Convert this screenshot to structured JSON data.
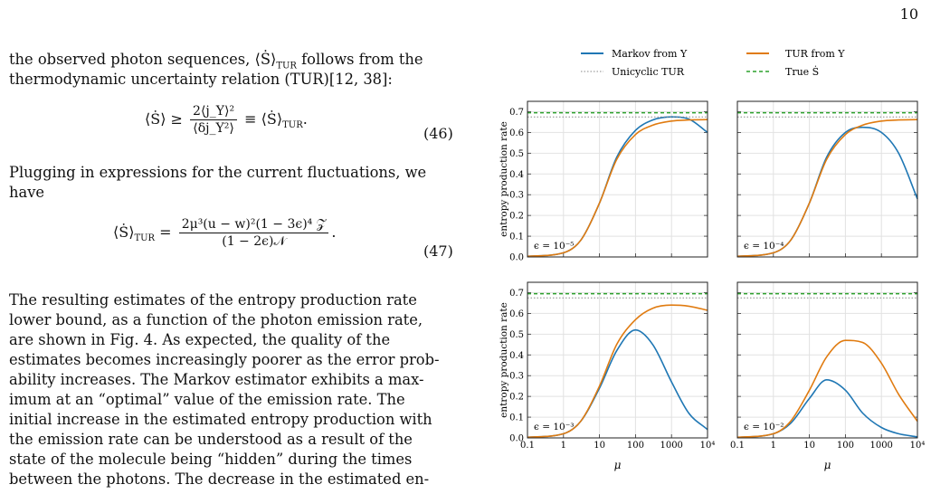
{
  "page_number": "10",
  "text": {
    "line1": "the observed photon sequences, ⟨Ṡ⟩",
    "line1_sub": "TUR",
    "line1_tail": " follows from the",
    "line2": "thermodynamic uncertainty relation (TUR)[12, 38]:",
    "eq46_left": "⟨Ṡ⟩ ≥",
    "eq46_num": "2⟨j_Y⟩²",
    "eq46_den": "⟨δj_Y²⟩",
    "eq46_right": "≡ ⟨Ṡ⟩",
    "eq46_right_sub": "TUR",
    "eq46_number": "(46)",
    "line3": "Plugging in expressions for the current fluctuations, we",
    "line4": "have",
    "eq47_left": "⟨Ṡ⟩",
    "eq47_left_sub": "TUR",
    "eq47_eq": " =",
    "eq47_num": "2μ³(u − w)²(1 − 3ϵ)⁴ 𝒵",
    "eq47_den": "(1 − 2ϵ)𝒩",
    "eq47_number": "(47)",
    "para": [
      "   The resulting estimates of the entropy production rate",
      "lower bound, as a function of the photon emission rate,",
      "are shown in Fig. 4.  As expected, the quality of the",
      "estimates becomes increasingly poorer as the error prob-",
      "ability increases. The Markov estimator exhibits a max-",
      "imum at an “optimal” value of the emission rate.  The",
      "initial increase in the estimated entropy production with",
      "the emission rate can be understood as a result of the",
      "state of the molecule being “hidden” during the times",
      "between the photons. The decrease in the estimated en-"
    ]
  },
  "legend": [
    "Markov from Y",
    "TUR from Y",
    "Unicyclic TUR",
    "True Ṡ"
  ],
  "colors": {
    "markov": "#1f77b4",
    "tur": "#e07b10",
    "unicyclic": "#888888",
    "true": "#2ca02c"
  },
  "chart_data": [
    {
      "type": "line",
      "panel": "top-left",
      "annotation": "ϵ = 10⁻⁵",
      "ylabel": "entropy production rate",
      "xlabel": "",
      "x_scale": "log",
      "xlim": [
        0.1,
        10000
      ],
      "ylim": [
        0,
        0.75
      ],
      "x_ticks": [
        "0.1",
        "1",
        "10",
        "100",
        "1000",
        "10⁴"
      ],
      "y_ticks": [
        "0.0",
        "0.1",
        "0.2",
        "0.3",
        "0.4",
        "0.5",
        "0.6",
        "0.7"
      ],
      "grid": true,
      "show_x_ticks": false,
      "show_y_ticks": true,
      "x": [
        0.1,
        1,
        3,
        10,
        30,
        100,
        300,
        1000,
        3000,
        10000
      ],
      "series": [
        {
          "name": "Markov from Y",
          "values": [
            0.003,
            0.02,
            0.08,
            0.26,
            0.48,
            0.61,
            0.66,
            0.675,
            0.665,
            0.6
          ]
        },
        {
          "name": "TUR from Y",
          "values": [
            0.003,
            0.02,
            0.08,
            0.26,
            0.47,
            0.59,
            0.635,
            0.655,
            0.66,
            0.662
          ]
        },
        {
          "name": "Unicyclic TUR",
          "values": [
            0.675,
            0.675,
            0.675,
            0.675,
            0.675,
            0.675,
            0.675,
            0.675,
            0.675,
            0.675
          ]
        },
        {
          "name": "True Ṡ",
          "values": [
            0.695,
            0.695,
            0.695,
            0.695,
            0.695,
            0.695,
            0.695,
            0.695,
            0.695,
            0.695
          ]
        }
      ]
    },
    {
      "type": "line",
      "panel": "top-right",
      "annotation": "ϵ = 10⁻⁴",
      "ylabel": "",
      "xlabel": "",
      "x_scale": "log",
      "xlim": [
        0.1,
        10000
      ],
      "ylim": [
        0,
        0.75
      ],
      "x_ticks": [
        "0.1",
        "1",
        "10",
        "100",
        "1000",
        "10⁴"
      ],
      "y_ticks": [
        "0.0",
        "0.1",
        "0.2",
        "0.3",
        "0.4",
        "0.5",
        "0.6",
        "0.7"
      ],
      "grid": true,
      "show_x_ticks": false,
      "show_y_ticks": false,
      "x": [
        0.1,
        1,
        3,
        10,
        30,
        100,
        300,
        1000,
        3000,
        10000
      ],
      "series": [
        {
          "name": "Markov from Y",
          "values": [
            0.003,
            0.02,
            0.08,
            0.26,
            0.48,
            0.6,
            0.625,
            0.6,
            0.5,
            0.28
          ]
        },
        {
          "name": "TUR from Y",
          "values": [
            0.003,
            0.02,
            0.08,
            0.26,
            0.47,
            0.59,
            0.635,
            0.655,
            0.66,
            0.662
          ]
        },
        {
          "name": "Unicyclic TUR",
          "values": [
            0.675,
            0.675,
            0.675,
            0.675,
            0.675,
            0.675,
            0.675,
            0.675,
            0.675,
            0.675
          ]
        },
        {
          "name": "True Ṡ",
          "values": [
            0.695,
            0.695,
            0.695,
            0.695,
            0.695,
            0.695,
            0.695,
            0.695,
            0.695,
            0.695
          ]
        }
      ]
    },
    {
      "type": "line",
      "panel": "bottom-left",
      "annotation": "ϵ = 10⁻³",
      "ylabel": "entropy production rate",
      "xlabel": "μ",
      "x_scale": "log",
      "xlim": [
        0.1,
        10000
      ],
      "ylim": [
        0,
        0.75
      ],
      "x_ticks": [
        "0.1",
        "1",
        "10",
        "100",
        "1000",
        "10⁴"
      ],
      "y_ticks": [
        "0.0",
        "0.1",
        "0.2",
        "0.3",
        "0.4",
        "0.5",
        "0.6",
        "0.7"
      ],
      "grid": true,
      "show_x_ticks": true,
      "show_y_ticks": true,
      "x": [
        0.1,
        1,
        3,
        10,
        30,
        100,
        300,
        1000,
        3000,
        10000
      ],
      "series": [
        {
          "name": "Markov from Y",
          "values": [
            0.003,
            0.02,
            0.08,
            0.24,
            0.42,
            0.52,
            0.45,
            0.27,
            0.12,
            0.04
          ]
        },
        {
          "name": "TUR from Y",
          "values": [
            0.003,
            0.02,
            0.08,
            0.25,
            0.45,
            0.57,
            0.625,
            0.64,
            0.635,
            0.615
          ]
        },
        {
          "name": "Unicyclic TUR",
          "values": [
            0.675,
            0.675,
            0.675,
            0.675,
            0.675,
            0.675,
            0.675,
            0.675,
            0.675,
            0.675
          ]
        },
        {
          "name": "True Ṡ",
          "values": [
            0.695,
            0.695,
            0.695,
            0.695,
            0.695,
            0.695,
            0.695,
            0.695,
            0.695,
            0.695
          ]
        }
      ]
    },
    {
      "type": "line",
      "panel": "bottom-right",
      "annotation": "ϵ = 10⁻²",
      "ylabel": "",
      "xlabel": "μ",
      "x_scale": "log",
      "xlim": [
        0.1,
        10000
      ],
      "ylim": [
        0,
        0.75
      ],
      "x_ticks": [
        "0.1",
        "1",
        "10",
        "100",
        "1000",
        "10⁴"
      ],
      "y_ticks": [
        "0.0",
        "0.1",
        "0.2",
        "0.3",
        "0.4",
        "0.5",
        "0.6",
        "0.7"
      ],
      "grid": true,
      "show_x_ticks": true,
      "show_y_ticks": false,
      "x": [
        0.1,
        1,
        3,
        10,
        30,
        100,
        300,
        1000,
        3000,
        10000
      ],
      "series": [
        {
          "name": "Markov from Y",
          "values": [
            0.002,
            0.02,
            0.07,
            0.19,
            0.28,
            0.23,
            0.12,
            0.05,
            0.02,
            0.005
          ]
        },
        {
          "name": "TUR from Y",
          "values": [
            0.003,
            0.02,
            0.08,
            0.23,
            0.39,
            0.47,
            0.46,
            0.36,
            0.21,
            0.08
          ]
        },
        {
          "name": "Unicyclic TUR",
          "values": [
            0.675,
            0.675,
            0.675,
            0.675,
            0.675,
            0.675,
            0.675,
            0.675,
            0.675,
            0.675
          ]
        },
        {
          "name": "True Ṡ",
          "values": [
            0.695,
            0.695,
            0.695,
            0.695,
            0.695,
            0.695,
            0.695,
            0.695,
            0.695,
            0.695
          ]
        }
      ]
    }
  ]
}
